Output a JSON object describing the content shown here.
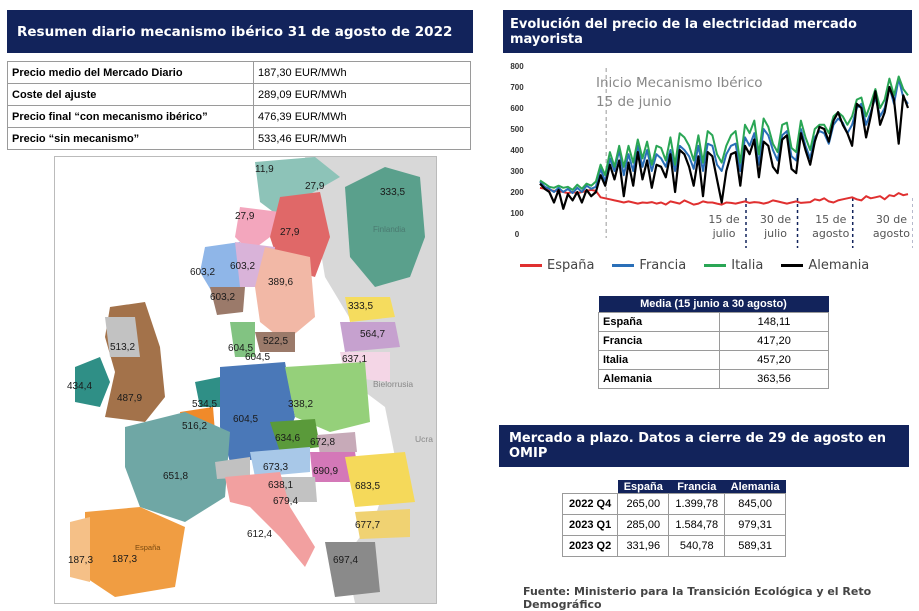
{
  "left": {
    "title": "Resumen diario mecanismo ibérico 31 de agosto de 2022",
    "summary_rows": [
      {
        "label": "Precio medio del Mercado Diario",
        "value": "187,30 EUR/MWh"
      },
      {
        "label": "Coste del ajuste",
        "value": "289,09 EUR/MWh"
      },
      {
        "label": "Precio final “con mecanismo ibérico”",
        "value": "476,39 EUR/MWh"
      },
      {
        "label": "Precio “sin mecanismo”",
        "value": "533,46 EUR/MWh"
      }
    ],
    "map": {
      "country_labels": {
        "finland": "Finlandia",
        "belarus": "Bielorrusia",
        "ukraine": "Ucra",
        "spain": "España"
      },
      "prices": [
        "11,9",
        "27,9",
        "333,5",
        "27,9",
        "27,9",
        "603,2",
        "603,2",
        "603,2",
        "389,6",
        "333,5",
        "564,7",
        "522,5",
        "604,5",
        "604,5",
        "637,1",
        "513,2",
        "434,4",
        "487,9",
        "534,5",
        "604,5",
        "338,2",
        "516,2",
        "634,6",
        "672,8",
        "651,8",
        "673,3",
        "690,9",
        "638,1",
        "679,4",
        "683,5",
        "612,4",
        "677,7",
        "187,3",
        "187,3",
        "697,4"
      ]
    }
  },
  "right": {
    "chart_title": "Evolución del precio de la electricidad mercado mayorista",
    "annotation_line1": "Inicio Mecanismo Ibérico",
    "annotation_line2": "15 de junio",
    "avg_table": {
      "header": "Media (15 junio a 30 agosto)",
      "rows": [
        {
          "country": "España",
          "value": "148,11"
        },
        {
          "country": "Francia",
          "value": "417,20"
        },
        {
          "country": "Italia",
          "value": "457,20"
        },
        {
          "country": "Alemania",
          "value": "363,56"
        }
      ]
    },
    "futures_title": "Mercado a plazo. Datos a cierre de 29 de agosto en OMIP",
    "futures_table": {
      "columns": [
        "España",
        "Francia",
        "Alemania"
      ],
      "rows": [
        {
          "period": "2022 Q4",
          "values": [
            "265,00",
            "1.399,78",
            "845,00"
          ]
        },
        {
          "period": "2023 Q1",
          "values": [
            "285,00",
            "1.584,78",
            "979,31"
          ]
        },
        {
          "period": "2023 Q2",
          "values": [
            "331,96",
            "540,78",
            "589,31"
          ]
        }
      ]
    },
    "source": "Fuente: Ministerio para la Transición Ecológica y el Reto Demográfico"
  },
  "chart_data": {
    "type": "line",
    "title": "Evolución del precio de la electricidad mercado mayorista",
    "ylim": [
      0,
      800
    ],
    "yticks": [
      "0",
      "100",
      "200",
      "300",
      "400",
      "500",
      "600",
      "700",
      "800"
    ],
    "x_tick_labels": [
      {
        "line1": "15 de",
        "line2": "julio",
        "pos": 0.5
      },
      {
        "line1": "30 de",
        "line2": "julio",
        "pos": 0.64
      },
      {
        "line1": "15 de",
        "line2": "agosto",
        "pos": 0.79
      },
      {
        "line1": "30 de",
        "line2": "agosto",
        "pos": 0.955
      }
    ],
    "annotation_pos": 0.18,
    "grid": false,
    "legend_position": "bottom",
    "colors": {
      "España": "#e03030",
      "Francia": "#2a6fb8",
      "Italia": "#2aa655",
      "Alemania": "#000000"
    },
    "series": [
      {
        "name": "España",
        "values": [
          220,
          215,
          210,
          205,
          205,
          200,
          195,
          200,
          195,
          200,
          205,
          210,
          205,
          175,
          170,
          165,
          160,
          155,
          150,
          155,
          150,
          145,
          150,
          148,
          152,
          145,
          150,
          140,
          155,
          150,
          145,
          160,
          150,
          140,
          145,
          155,
          150,
          150,
          145,
          140,
          150,
          148,
          145,
          150,
          155,
          148,
          152,
          150,
          145,
          150,
          160,
          155,
          150,
          145,
          150,
          155,
          148,
          150,
          152,
          165,
          160,
          170,
          155,
          150,
          160,
          165,
          170,
          175,
          165,
          160,
          180,
          170,
          175,
          180,
          165,
          185,
          180,
          195,
          185,
          190
        ]
      },
      {
        "name": "Francia",
        "values": [
          250,
          225,
          215,
          200,
          220,
          200,
          215,
          195,
          220,
          200,
          230,
          215,
          225,
          310,
          250,
          360,
          300,
          400,
          280,
          380,
          300,
          420,
          320,
          400,
          300,
          380,
          360,
          320,
          400,
          300,
          420,
          400,
          370,
          310,
          420,
          300,
          430,
          420,
          330,
          300,
          380,
          420,
          430,
          300,
          460,
          420,
          480,
          330,
          500,
          470,
          400,
          350,
          470,
          490,
          370,
          350,
          500,
          420,
          360,
          460,
          490,
          480,
          430,
          520,
          550,
          530,
          480,
          520,
          600,
          620,
          520,
          580,
          650,
          560,
          600,
          700,
          620,
          740,
          650,
          620
        ]
      },
      {
        "name": "Italia",
        "values": [
          255,
          240,
          225,
          220,
          230,
          220,
          225,
          210,
          235,
          215,
          240,
          230,
          250,
          330,
          280,
          390,
          320,
          420,
          320,
          420,
          340,
          450,
          360,
          440,
          330,
          420,
          410,
          350,
          460,
          330,
          480,
          460,
          420,
          350,
          470,
          340,
          490,
          470,
          380,
          340,
          420,
          470,
          490,
          340,
          520,
          480,
          540,
          380,
          550,
          510,
          430,
          390,
          520,
          530,
          410,
          390,
          540,
          460,
          400,
          500,
          520,
          520,
          480,
          560,
          580,
          560,
          520,
          560,
          640,
          650,
          560,
          620,
          690,
          600,
          640,
          740,
          660,
          750,
          690,
          660
        ]
      },
      {
        "name": "Alemania",
        "values": [
          240,
          215,
          200,
          150,
          210,
          120,
          190,
          160,
          200,
          150,
          210,
          180,
          200,
          280,
          230,
          330,
          260,
          350,
          180,
          340,
          230,
          390,
          260,
          350,
          220,
          330,
          320,
          270,
          380,
          200,
          400,
          380,
          320,
          230,
          370,
          180,
          390,
          370,
          260,
          150,
          300,
          380,
          390,
          230,
          420,
          380,
          450,
          270,
          440,
          420,
          320,
          290,
          450,
          470,
          310,
          290,
          480,
          400,
          330,
          440,
          510,
          500,
          440,
          540,
          580,
          520,
          480,
          420,
          620,
          600,
          460,
          560,
          680,
          520,
          580,
          700,
          640,
          430,
          660,
          600
        ]
      }
    ]
  }
}
